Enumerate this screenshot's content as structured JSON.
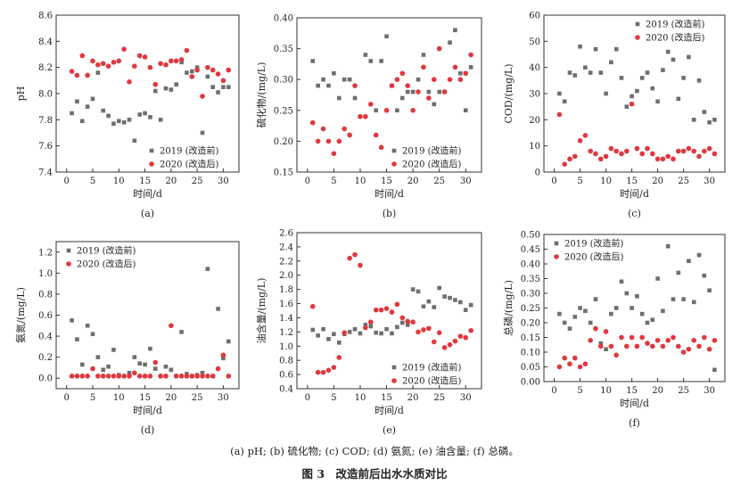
{
  "caption": "(a) pH; (b) 硫化物; (c) COD; (d) 氨氮; (e) 油含量; (f) 总磷。",
  "figure_title": "图 3　改造前后出水水质对比",
  "colors": {
    "series_2019": "#6e6e6e",
    "series_2020": "#e0383e"
  },
  "chart_data": [
    {
      "type": "scatter",
      "panel_label": "(a)",
      "xlabel": "时间/d",
      "ylabel": "pH",
      "xlim": [
        -2,
        33
      ],
      "ylim": [
        7.4,
        8.6
      ],
      "xticks": [
        0,
        5,
        10,
        15,
        20,
        25,
        30
      ],
      "yticks": [
        7.4,
        7.6,
        7.8,
        8.0,
        8.2,
        8.4,
        8.6
      ],
      "yfmt": 1,
      "legend": "bottom-right",
      "series": [
        {
          "name": "2019 (改造前)",
          "marker": "square",
          "x": [
            1,
            2,
            3,
            4,
            5,
            6,
            7,
            8,
            9,
            10,
            11,
            12,
            13,
            14,
            15,
            16,
            17,
            18,
            19,
            20,
            21,
            22,
            23,
            24,
            25,
            26,
            27,
            28,
            29,
            30,
            31
          ],
          "y": [
            7.85,
            7.94,
            7.79,
            7.9,
            7.96,
            8.16,
            7.87,
            7.83,
            7.77,
            7.79,
            7.78,
            7.8,
            7.64,
            7.84,
            7.85,
            7.82,
            8.02,
            7.8,
            8.04,
            8.03,
            8.07,
            8.24,
            8.16,
            8.17,
            8.2,
            7.7,
            8.13,
            8.05,
            8.01,
            8.05,
            8.05
          ]
        },
        {
          "name": "2020 (改造后)",
          "marker": "circle",
          "x": [
            1,
            2,
            3,
            4,
            5,
            6,
            7,
            8,
            9,
            10,
            11,
            12,
            13,
            14,
            15,
            16,
            17,
            18,
            19,
            20,
            21,
            22,
            23,
            24,
            25,
            26,
            27,
            28,
            29,
            30,
            31
          ],
          "y": [
            8.17,
            8.14,
            8.29,
            8.14,
            8.25,
            8.22,
            8.23,
            8.21,
            8.24,
            8.25,
            8.34,
            8.09,
            8.21,
            8.29,
            8.28,
            8.2,
            8.07,
            8.23,
            8.22,
            8.25,
            8.25,
            8.26,
            8.33,
            8.13,
            8.18,
            7.98,
            8.2,
            8.18,
            8.15,
            8.1,
            8.18
          ]
        }
      ]
    },
    {
      "type": "scatter",
      "panel_label": "(b)",
      "xlabel": "时间/d",
      "ylabel": "硫化物/(mg/L)",
      "xlim": [
        -2,
        33
      ],
      "ylim": [
        0.15,
        0.4
      ],
      "xticks": [
        0,
        5,
        10,
        15,
        20,
        25,
        30
      ],
      "yticks": [
        0.15,
        0.2,
        0.25,
        0.3,
        0.35,
        0.4
      ],
      "yfmt": 2,
      "legend": "bottom-right",
      "series": [
        {
          "name": "2019 (改造前)",
          "marker": "square",
          "x": [
            1,
            2,
            3,
            4,
            5,
            6,
            7,
            8,
            9,
            10,
            11,
            12,
            13,
            14,
            15,
            16,
            17,
            18,
            19,
            20,
            21,
            22,
            23,
            24,
            25,
            26,
            27,
            28,
            29,
            30,
            31
          ],
          "y": [
            0.33,
            0.29,
            0.3,
            0.29,
            0.31,
            0.27,
            0.3,
            0.3,
            0.27,
            0.24,
            0.34,
            0.33,
            0.25,
            0.33,
            0.37,
            0.29,
            0.25,
            0.27,
            0.28,
            0.28,
            0.3,
            0.34,
            0.28,
            0.26,
            0.28,
            0.28,
            0.36,
            0.38,
            0.31,
            0.25,
            0.32
          ]
        },
        {
          "name": "2020 (改造后)",
          "marker": "circle",
          "x": [
            1,
            2,
            3,
            4,
            5,
            6,
            7,
            8,
            9,
            10,
            11,
            12,
            13,
            14,
            15,
            16,
            17,
            18,
            19,
            20,
            21,
            22,
            23,
            24,
            25,
            26,
            27,
            28,
            29,
            30,
            31
          ],
          "y": [
            0.23,
            0.2,
            0.22,
            0.2,
            0.18,
            0.2,
            0.22,
            0.21,
            0.29,
            0.24,
            0.24,
            0.26,
            0.21,
            0.19,
            0.25,
            0.29,
            0.3,
            0.31,
            0.29,
            0.25,
            0.28,
            0.32,
            0.27,
            0.3,
            0.35,
            0.28,
            0.3,
            0.32,
            0.3,
            0.31,
            0.34
          ]
        }
      ]
    },
    {
      "type": "scatter",
      "panel_label": "(c)",
      "xlabel": "时间/d",
      "ylabel": "COD/(mg/L)",
      "xlim": [
        -2,
        33
      ],
      "ylim": [
        0,
        60
      ],
      "xticks": [
        0,
        5,
        10,
        15,
        20,
        25,
        30
      ],
      "yticks": [
        0,
        10,
        20,
        30,
        40,
        50,
        60
      ],
      "yfmt": 0,
      "legend": "top-right",
      "series": [
        {
          "name": "2019 (改造前)",
          "marker": "square",
          "x": [
            1,
            2,
            3,
            4,
            5,
            6,
            7,
            8,
            9,
            10,
            11,
            12,
            13,
            14,
            15,
            16,
            17,
            18,
            19,
            20,
            21,
            22,
            23,
            24,
            25,
            26,
            27,
            28,
            29,
            30,
            31
          ],
          "y": [
            30,
            27,
            38,
            37,
            48,
            40,
            38,
            47,
            38,
            30,
            42,
            47,
            36,
            25,
            29,
            31,
            36,
            38,
            32,
            27,
            39,
            46,
            43,
            28,
            36,
            44,
            20,
            35,
            23,
            19,
            20
          ]
        },
        {
          "name": "2020 (改造后)",
          "marker": "circle",
          "x": [
            1,
            2,
            3,
            4,
            5,
            6,
            7,
            8,
            9,
            10,
            11,
            12,
            13,
            14,
            15,
            16,
            17,
            18,
            19,
            20,
            21,
            22,
            23,
            24,
            25,
            26,
            27,
            28,
            29,
            30,
            31
          ],
          "y": [
            22,
            3,
            5,
            6,
            12,
            14,
            8,
            7,
            5,
            6,
            9,
            8,
            7,
            8,
            26,
            9,
            7,
            9,
            7,
            5,
            5,
            6,
            5,
            8,
            8,
            9,
            8,
            6,
            8,
            9,
            7
          ]
        }
      ]
    },
    {
      "type": "scatter",
      "panel_label": "(d)",
      "xlabel": "时间/d",
      "ylabel": "氨氮/(mg/L)",
      "xlim": [
        -2,
        33
      ],
      "ylim": [
        -0.1,
        1.3
      ],
      "xticks": [
        0,
        5,
        10,
        15,
        20,
        25,
        30
      ],
      "yticks": [
        0.0,
        0.2,
        0.4,
        0.6,
        0.8,
        1.0,
        1.2
      ],
      "yfmt": 1,
      "legend": "top-left",
      "series": [
        {
          "name": "2019 (改造前)",
          "marker": "square",
          "x": [
            1,
            2,
            3,
            4,
            5,
            6,
            7,
            8,
            9,
            10,
            11,
            12,
            13,
            14,
            15,
            16,
            17,
            18,
            19,
            20,
            21,
            22,
            23,
            24,
            25,
            26,
            27,
            28,
            29,
            30,
            31
          ],
          "y": [
            0.55,
            0.37,
            0.13,
            0.5,
            0.42,
            0.2,
            0.08,
            0.11,
            0.27,
            0.03,
            0.02,
            0.05,
            0.2,
            0.14,
            0.13,
            0.28,
            0.09,
            0.02,
            0.11,
            0.08,
            0.02,
            0.44,
            0.04,
            0.02,
            0.03,
            0.05,
            1.04,
            0.02,
            0.66,
            0.19,
            0.35
          ]
        },
        {
          "name": "2020 (改造后)",
          "marker": "circle",
          "x": [
            1,
            2,
            3,
            4,
            5,
            6,
            7,
            8,
            9,
            10,
            11,
            12,
            13,
            14,
            15,
            16,
            17,
            18,
            19,
            20,
            21,
            22,
            23,
            24,
            25,
            26,
            27,
            28,
            29,
            30,
            31
          ],
          "y": [
            0.02,
            0.02,
            0.02,
            0.02,
            0.09,
            0.02,
            0.02,
            0.02,
            0.02,
            0.02,
            0.02,
            0.02,
            0.05,
            0.02,
            0.02,
            0.02,
            0.15,
            0.02,
            0.02,
            0.5,
            0.02,
            0.02,
            0.02,
            0.02,
            0.02,
            0.02,
            0.02,
            0.02,
            0.09,
            0.22,
            0.02
          ]
        }
      ]
    },
    {
      "type": "scatter",
      "panel_label": "(e)",
      "xlabel": "时间/d",
      "ylabel": "油含量/(mg/L)",
      "xlim": [
        -2,
        33
      ],
      "ylim": [
        0.4,
        2.6
      ],
      "xticks": [
        0,
        5,
        10,
        15,
        20,
        25,
        30
      ],
      "yticks": [
        0.4,
        0.6,
        0.8,
        1.0,
        1.2,
        1.4,
        1.6,
        1.8,
        2.0,
        2.2,
        2.4,
        2.6
      ],
      "yfmt": 1,
      "legend": "bottom-right",
      "series": [
        {
          "name": "2019 (改造前)",
          "marker": "square",
          "x": [
            1,
            2,
            3,
            4,
            5,
            6,
            7,
            8,
            9,
            10,
            11,
            12,
            13,
            14,
            15,
            16,
            17,
            18,
            19,
            20,
            21,
            22,
            23,
            24,
            25,
            26,
            27,
            28,
            29,
            30,
            31
          ],
          "y": [
            1.23,
            1.15,
            1.24,
            1.1,
            1.17,
            1.05,
            1.17,
            1.2,
            1.24,
            1.18,
            1.3,
            1.28,
            1.19,
            1.18,
            1.24,
            1.18,
            1.27,
            1.33,
            1.3,
            1.8,
            1.77,
            1.56,
            1.63,
            1.55,
            1.82,
            1.7,
            1.68,
            1.65,
            1.62,
            1.51,
            1.58
          ]
        },
        {
          "name": "2020 (改造后)",
          "marker": "circle",
          "x": [
            1,
            2,
            3,
            4,
            5,
            6,
            7,
            8,
            9,
            10,
            11,
            12,
            13,
            14,
            15,
            16,
            17,
            18,
            19,
            20,
            21,
            22,
            23,
            24,
            25,
            26,
            27,
            28,
            29,
            30,
            31
          ],
          "y": [
            1.56,
            0.63,
            0.63,
            0.66,
            0.7,
            0.84,
            1.19,
            2.24,
            2.29,
            2.14,
            1.26,
            1.34,
            1.51,
            1.51,
            1.53,
            1.48,
            1.59,
            1.4,
            1.35,
            1.34,
            1.2,
            1.23,
            1.25,
            1.06,
            1.19,
            0.98,
            1.02,
            1.07,
            1.14,
            1.12,
            1.22
          ]
        }
      ]
    },
    {
      "type": "scatter",
      "panel_label": "(f)",
      "xlabel": "时间/d",
      "ylabel": "总磷/(mg/L)",
      "xlim": [
        -2,
        33
      ],
      "ylim": [
        0.0,
        0.5
      ],
      "xticks": [
        0,
        5,
        10,
        15,
        20,
        25,
        30
      ],
      "yticks": [
        0.0,
        0.05,
        0.1,
        0.15,
        0.2,
        0.25,
        0.3,
        0.35,
        0.4,
        0.45,
        0.5
      ],
      "yfmt": 2,
      "legend": "top-left",
      "series": [
        {
          "name": "2019 (改造前)",
          "marker": "square",
          "x": [
            1,
            2,
            3,
            4,
            5,
            6,
            7,
            8,
            9,
            10,
            11,
            12,
            13,
            14,
            15,
            16,
            17,
            18,
            19,
            20,
            21,
            22,
            23,
            24,
            25,
            26,
            27,
            28,
            29,
            30,
            31
          ],
          "y": [
            0.23,
            0.2,
            0.18,
            0.22,
            0.25,
            0.24,
            0.2,
            0.28,
            0.13,
            0.11,
            0.23,
            0.25,
            0.34,
            0.3,
            0.25,
            0.29,
            0.23,
            0.2,
            0.21,
            0.35,
            0.24,
            0.46,
            0.28,
            0.37,
            0.28,
            0.41,
            0.27,
            0.43,
            0.36,
            0.31,
            0.04
          ]
        },
        {
          "name": "2020 (改造后)",
          "marker": "circle",
          "x": [
            1,
            2,
            3,
            4,
            5,
            6,
            7,
            8,
            9,
            10,
            11,
            12,
            13,
            14,
            15,
            16,
            17,
            18,
            19,
            20,
            21,
            22,
            23,
            24,
            25,
            26,
            27,
            28,
            29,
            30,
            31
          ],
          "y": [
            0.05,
            0.08,
            0.06,
            0.08,
            0.05,
            0.06,
            0.14,
            0.18,
            0.12,
            0.17,
            0.12,
            0.09,
            0.15,
            0.12,
            0.15,
            0.12,
            0.15,
            0.13,
            0.12,
            0.14,
            0.12,
            0.14,
            0.15,
            0.12,
            0.1,
            0.11,
            0.14,
            0.12,
            0.15,
            0.11,
            0.14
          ]
        }
      ]
    }
  ]
}
